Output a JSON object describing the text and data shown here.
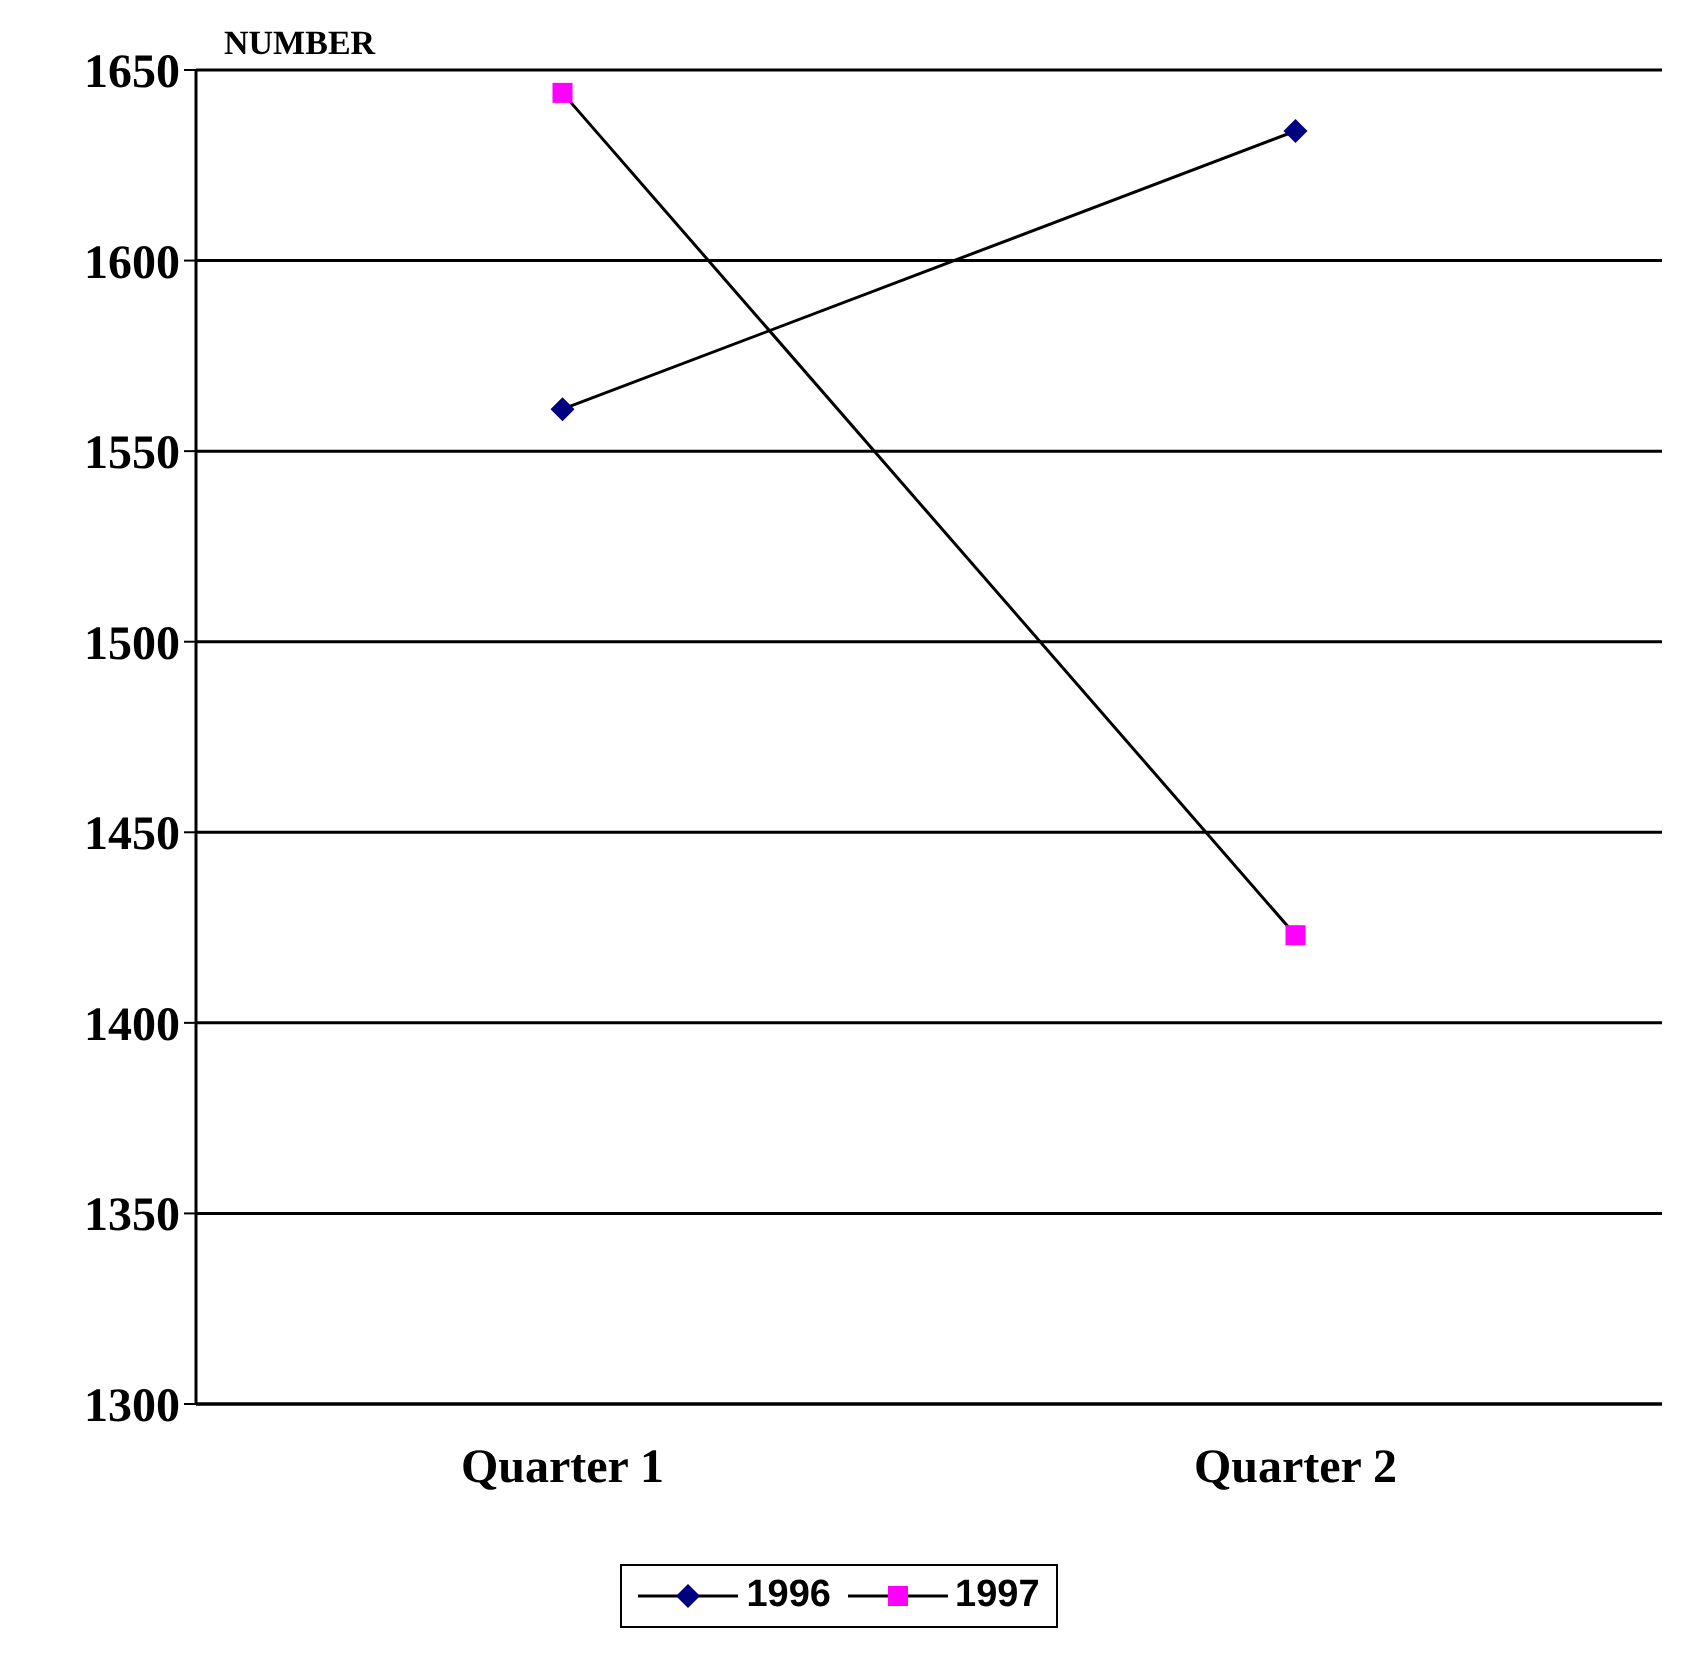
{
  "chart_data": {
    "type": "line",
    "ylabel": "NUMBER",
    "categories": [
      "Quarter 1",
      "Quarter 2"
    ],
    "series": [
      {
        "name": "1996",
        "color": "#000080",
        "values": [
          1561,
          1634
        ],
        "marker": "diamond"
      },
      {
        "name": "1997",
        "color": "#ff00ff",
        "values": [
          1644,
          1423
        ],
        "marker": "square"
      }
    ],
    "ylim": [
      1300,
      1650
    ],
    "yticks": [
      1300,
      1350,
      1400,
      1450,
      1500,
      1550,
      1600,
      1650
    ],
    "grid": "y",
    "legend": "bottom",
    "line_style": "solid"
  }
}
